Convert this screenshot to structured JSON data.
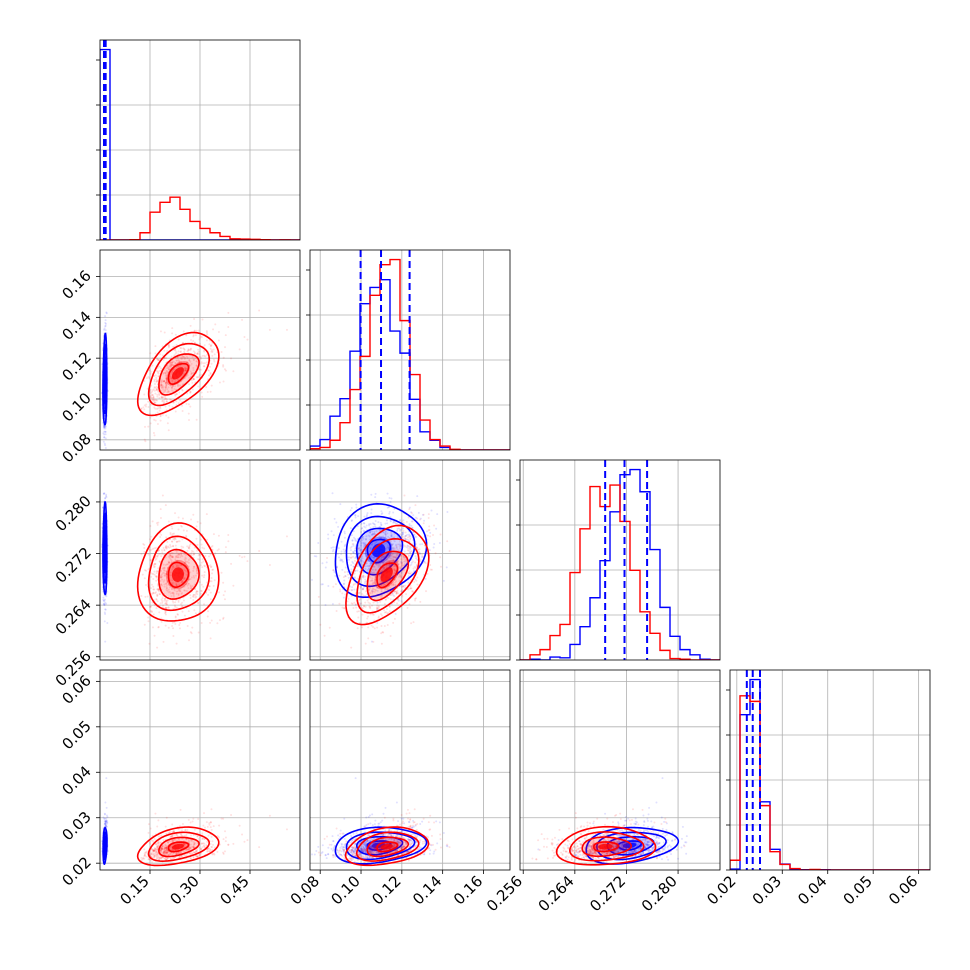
{
  "chart_data": {
    "type": "scatter",
    "subtype": "corner-plot",
    "title": "",
    "grid": true,
    "legend": "none",
    "colors": {
      "blue": "#0000ff",
      "red": "#ff0000",
      "grid": "#b0b0b0"
    },
    "parameters": [
      {
        "range": [
          0.0,
          0.6
        ],
        "ticks": [
          0.15,
          0.3,
          0.45
        ],
        "tick_labels": [
          "0.15",
          "0.30",
          "0.45"
        ]
      },
      {
        "range": [
          0.075,
          0.173
        ],
        "ticks": [
          0.08,
          0.1,
          0.12,
          0.14,
          0.16
        ],
        "tick_labels": [
          "0.08",
          "0.10",
          "0.12",
          "0.14",
          "0.16"
        ]
      },
      {
        "range": [
          0.2555,
          0.2865
        ],
        "ticks": [
          0.256,
          0.264,
          0.272,
          0.28
        ],
        "tick_labels": [
          "0.256",
          "0.264",
          "0.272",
          "0.280"
        ]
      },
      {
        "range": [
          0.0185,
          0.0625
        ],
        "ticks": [
          0.02,
          0.03,
          0.04,
          0.05,
          0.06
        ],
        "tick_labels": [
          "0.02",
          "0.03",
          "0.04",
          "0.05",
          "0.06"
        ]
      }
    ],
    "series": [
      {
        "color": "#0000ff",
        "means": [
          0.015,
          0.109,
          0.2725,
          0.0235
        ],
        "sds": [
          0.003,
          0.011,
          0.0035,
          0.0017
        ],
        "corr": {
          "0-1": 0.1,
          "0-2": 0.0,
          "0-3": 0.2,
          "1-2": 0.15,
          "1-3": 0.2,
          "2-3": 0.2
        },
        "quantiles": [
          [
            0.012,
            0.014,
            0.017
          ],
          [
            0.0998,
            0.1098,
            0.1238
          ],
          [
            0.2687,
            0.2717,
            0.2752
          ],
          [
            0.0222,
            0.0235,
            0.0251
          ]
        ]
      },
      {
        "color": "#ff0000",
        "means": [
          0.225,
          0.113,
          0.2688,
          0.0232
        ],
        "sds": [
          0.055,
          0.01,
          0.0037,
          0.0018
        ],
        "corr": {
          "0-1": 0.55,
          "0-2": 0.1,
          "0-3": 0.35,
          "1-2": 0.45,
          "1-3": 0.3,
          "2-3": 0.1
        },
        "quantiles": []
      }
    ]
  }
}
